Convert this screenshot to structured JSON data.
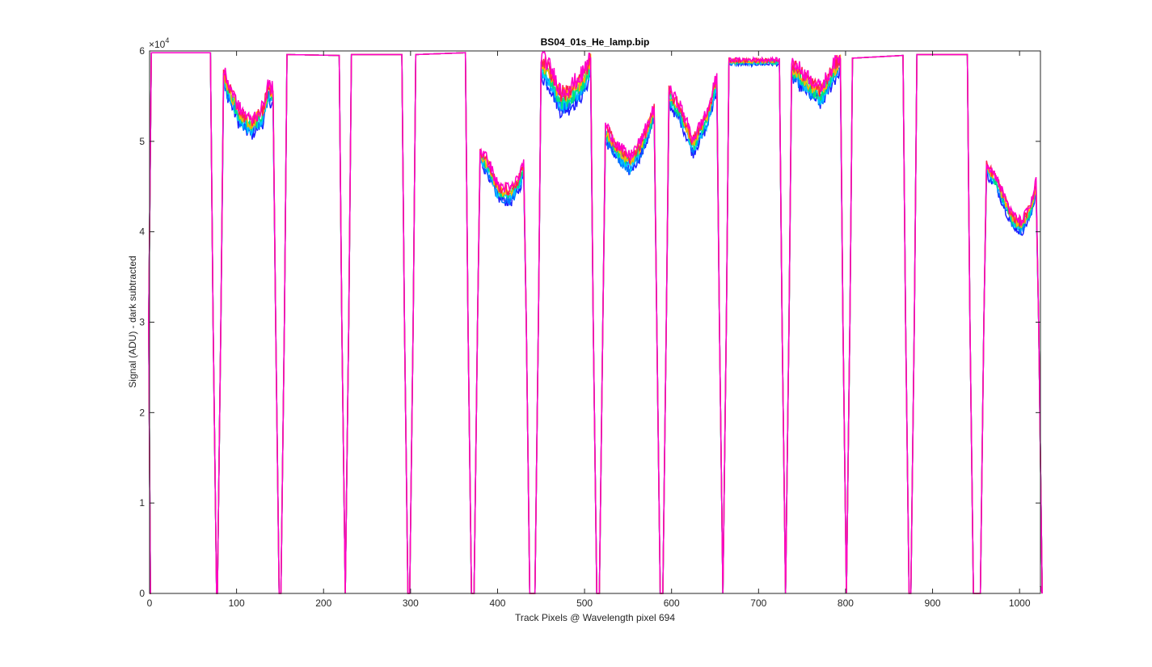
{
  "chart_data": {
    "type": "line",
    "title": "BS04_01s_He_lamp.bip",
    "xlabel": "Track Pixels @ Wavelength pixel 694",
    "ylabel": "Signal (ADU) - dark subtracted",
    "y_exponent_label": "×10",
    "y_exponent_power": "4",
    "xlim": [
      0,
      1024
    ],
    "ylim": [
      0,
      60000
    ],
    "x_ticks": [
      0,
      100,
      200,
      300,
      400,
      500,
      600,
      700,
      800,
      900,
      1000
    ],
    "x_tick_labels": [
      "0",
      "100",
      "200",
      "300",
      "400",
      "500",
      "600",
      "700",
      "800",
      "900",
      "1000"
    ],
    "y_ticks": [
      0,
      10000,
      20000,
      30000,
      40000,
      50000,
      60000
    ],
    "y_tick_labels": [
      "0",
      "1",
      "2",
      "3",
      "4",
      "5",
      "6"
    ],
    "grid": false,
    "series_colors": [
      "#1b1bff",
      "#0078ff",
      "#00c8ff",
      "#00e676",
      "#ffb400",
      "#ff1e50",
      "#ff00c8"
    ],
    "segments": [
      {
        "x0": 2,
        "x1": 70,
        "base": 59800,
        "spread": 0,
        "trend": [
          [
            0,
            59800
          ],
          [
            1,
            59800
          ]
        ]
      },
      {
        "x0": 85,
        "x1": 142,
        "base": 55000,
        "spread": 1400,
        "trend": [
          [
            0,
            57000
          ],
          [
            0.15,
            55000
          ],
          [
            0.3,
            53000
          ],
          [
            0.55,
            51500
          ],
          [
            0.8,
            53000
          ],
          [
            0.9,
            55500
          ],
          [
            1,
            55000
          ]
        ]
      },
      {
        "x0": 158,
        "x1": 218,
        "base": 59500,
        "spread": 0,
        "trend": [
          [
            0,
            59600
          ],
          [
            1,
            59500
          ]
        ]
      },
      {
        "x0": 232,
        "x1": 290,
        "base": 59600,
        "spread": 0,
        "trend": [
          [
            0,
            59600
          ],
          [
            1,
            59600
          ]
        ]
      },
      {
        "x0": 306,
        "x1": 363,
        "base": 59700,
        "spread": 0,
        "trend": [
          [
            0,
            59600
          ],
          [
            1,
            59800
          ]
        ]
      },
      {
        "x0": 380,
        "x1": 430,
        "base": 45000,
        "spread": 1200,
        "trend": [
          [
            0,
            48500
          ],
          [
            0.2,
            47000
          ],
          [
            0.4,
            44500
          ],
          [
            0.7,
            44000
          ],
          [
            0.9,
            45500
          ],
          [
            1,
            47000
          ]
        ]
      },
      {
        "x0": 450,
        "x1": 507,
        "base": 56000,
        "spread": 1800,
        "trend": [
          [
            0,
            58500
          ],
          [
            0.2,
            57000
          ],
          [
            0.4,
            54500
          ],
          [
            0.6,
            55000
          ],
          [
            0.85,
            56500
          ],
          [
            1,
            58500
          ]
        ]
      },
      {
        "x0": 524,
        "x1": 580,
        "base": 49000,
        "spread": 1300,
        "trend": [
          [
            0,
            51000
          ],
          [
            0.3,
            48500
          ],
          [
            0.5,
            47500
          ],
          [
            0.75,
            49500
          ],
          [
            1,
            53000
          ]
        ]
      },
      {
        "x0": 597,
        "x1": 652,
        "base": 52000,
        "spread": 1300,
        "trend": [
          [
            0,
            55000
          ],
          [
            0.25,
            53000
          ],
          [
            0.5,
            49500
          ],
          [
            0.8,
            52500
          ],
          [
            1,
            56500
          ]
        ]
      },
      {
        "x0": 666,
        "x1": 724,
        "base": 58800,
        "spread": 400,
        "trend": [
          [
            0,
            58800
          ],
          [
            1,
            58800
          ]
        ]
      },
      {
        "x0": 738,
        "x1": 794,
        "base": 56500,
        "spread": 1500,
        "trend": [
          [
            0,
            58000
          ],
          [
            0.3,
            56500
          ],
          [
            0.6,
            55000
          ],
          [
            0.85,
            57500
          ],
          [
            1,
            58700
          ]
        ]
      },
      {
        "x0": 808,
        "x1": 866,
        "base": 59300,
        "spread": 0,
        "trend": [
          [
            0,
            59200
          ],
          [
            1,
            59500
          ]
        ]
      },
      {
        "x0": 882,
        "x1": 940,
        "base": 59600,
        "spread": 0,
        "trend": [
          [
            0,
            59600
          ],
          [
            1,
            59600
          ]
        ]
      },
      {
        "x0": 962,
        "x1": 1019,
        "base": 43000,
        "spread": 1000,
        "trend": [
          [
            0,
            47000
          ],
          [
            0.2,
            45500
          ],
          [
            0.5,
            41500
          ],
          [
            0.7,
            40500
          ],
          [
            0.9,
            42500
          ],
          [
            1,
            45000
          ]
        ]
      }
    ],
    "gaps_min_x": [
      78,
      150,
      225,
      298,
      372,
      440,
      515,
      588,
      660,
      731,
      801,
      874,
      950
    ]
  }
}
